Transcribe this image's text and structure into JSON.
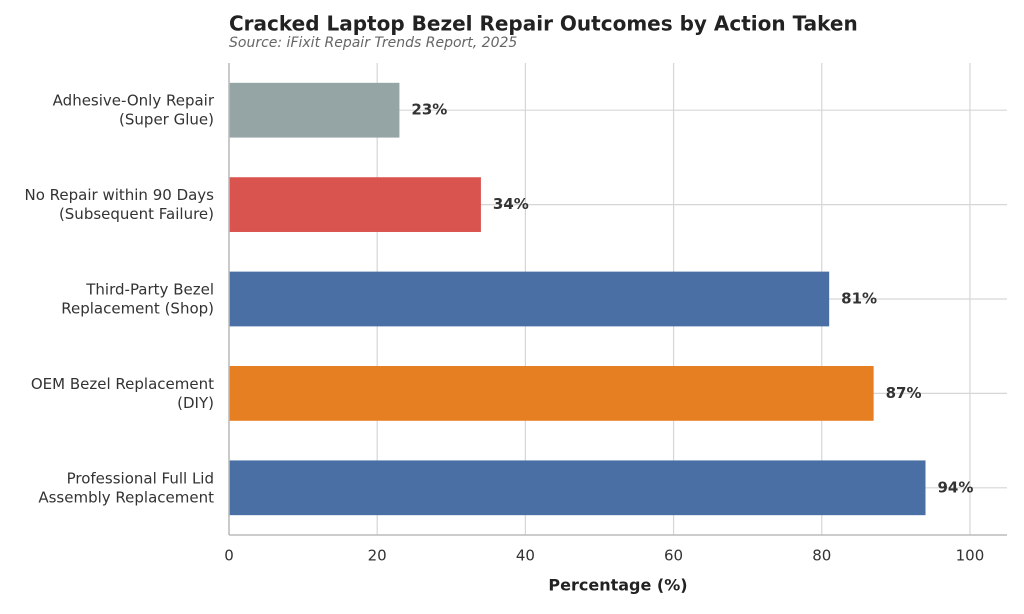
{
  "chart_data": {
    "type": "bar",
    "orientation": "horizontal",
    "title": "Cracked Laptop Bezel Repair Outcomes by Action Taken",
    "subtitle": "Source: iFixit Repair Trends Report, 2025",
    "x_label": "Percentage (%)",
    "categories": [
      [
        "Adhesive-Only Repair",
        "(Super Glue)"
      ],
      [
        "No Repair within 90 Days",
        "(Subsequent Failure)"
      ],
      [
        "Third-Party Bezel",
        "Replacement (Shop)"
      ],
      [
        "OEM Bezel Replacement",
        "(DIY)"
      ],
      [
        "Professional Full Lid",
        "Assembly Replacement"
      ]
    ],
    "values": [
      23,
      34,
      81,
      87,
      94
    ],
    "value_labels": [
      "23%",
      "34%",
      "81%",
      "87%",
      "94%"
    ],
    "colors": [
      "#95a5a6",
      "#d9534f",
      "#4a6fa5",
      "#e67e22",
      "#4a6fa5"
    ],
    "xlim": [
      0,
      105
    ],
    "xticks": [
      0,
      20,
      40,
      60,
      80,
      100
    ],
    "grid": true
  }
}
